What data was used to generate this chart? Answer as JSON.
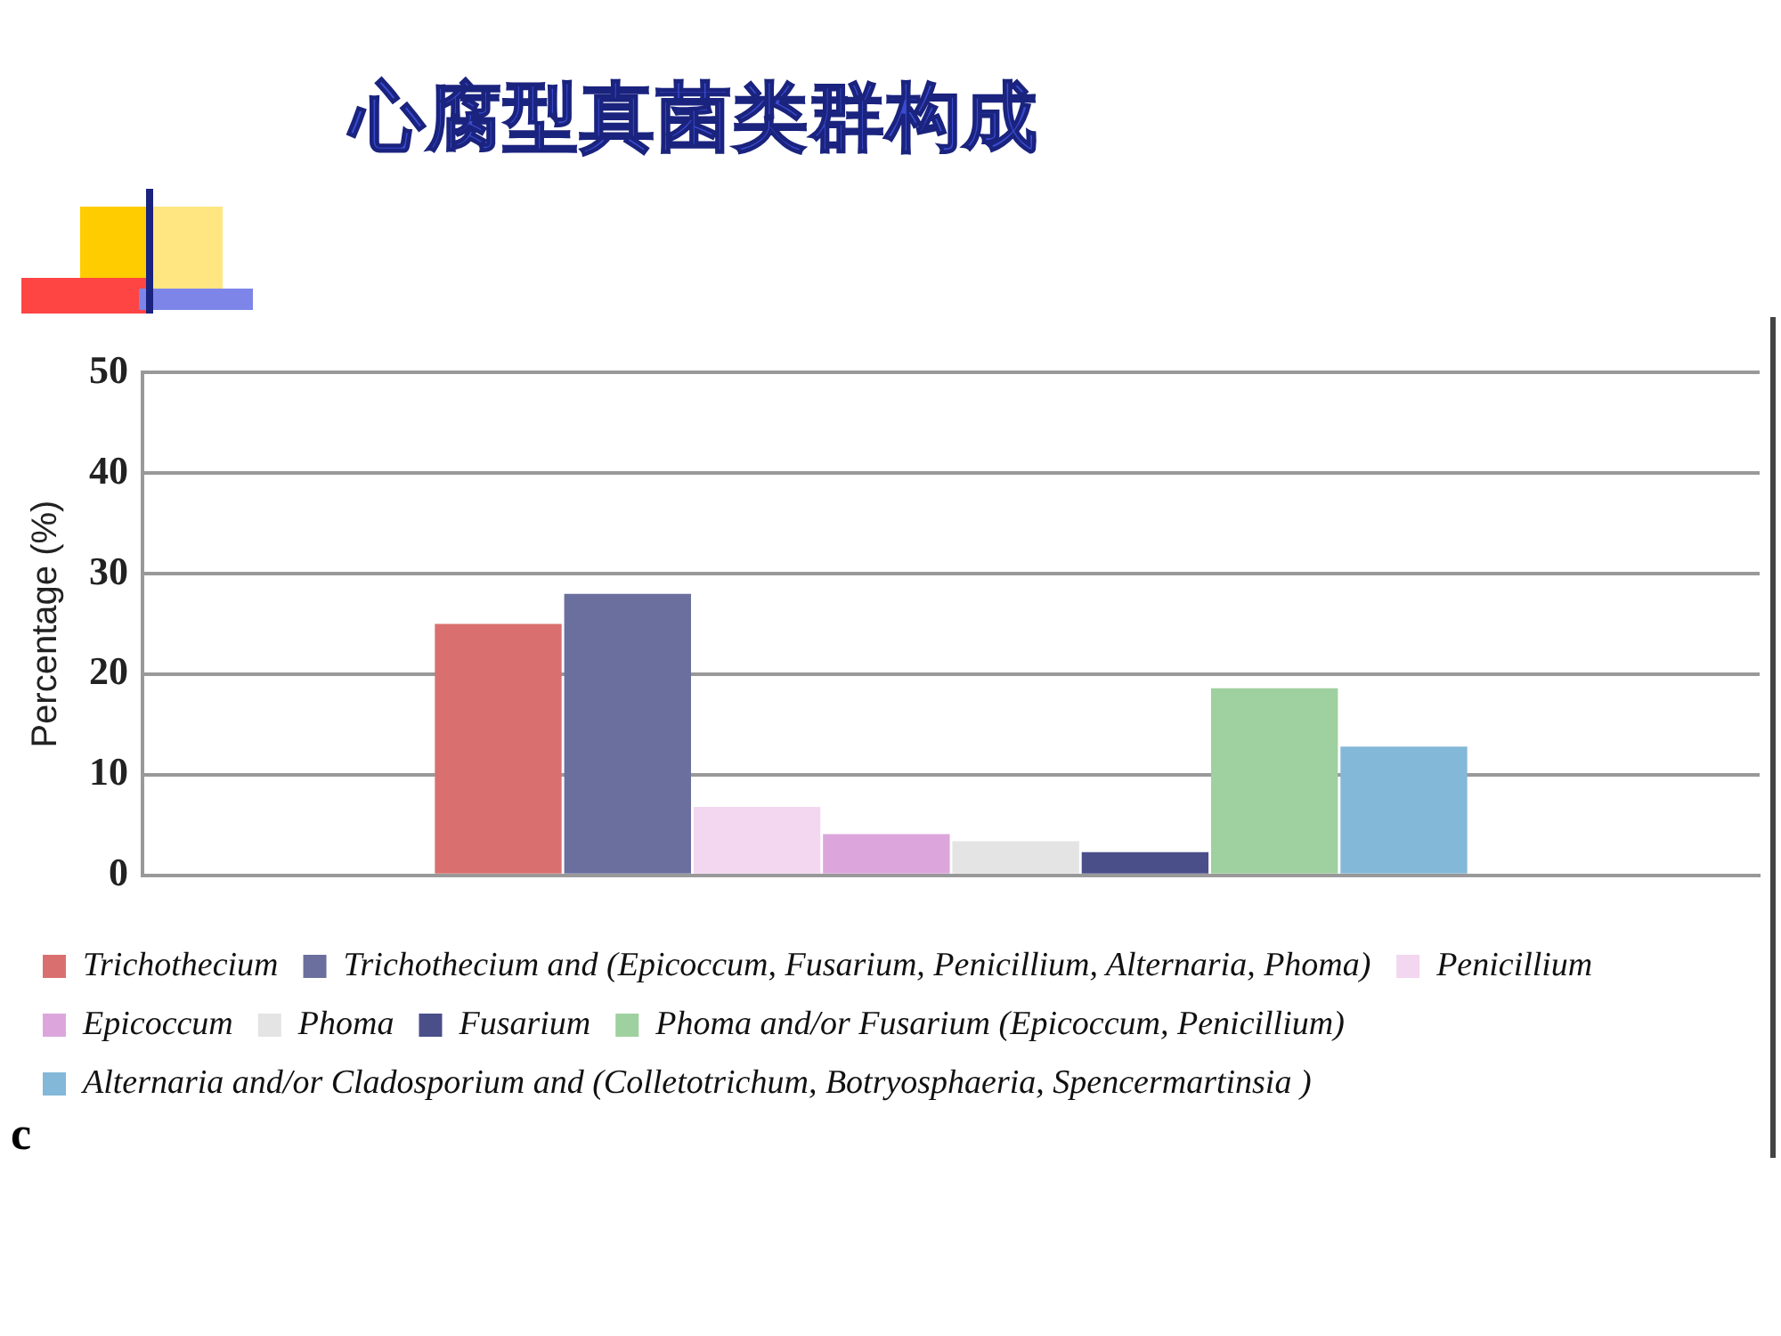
{
  "chart_data": {
    "type": "bar",
    "title": "心腐型真菌类群构成",
    "ylabel": "Percentage (%)",
    "categories": [
      null
    ],
    "series": [
      {
        "name": "Trichothecium",
        "color": "#d9706f",
        "values": [
          25
        ]
      },
      {
        "name": "Trichothecium and (Epicoccum, Fusarium, Penicillium, Alternaria, Phoma)",
        "color": "#6a6f9e",
        "values": [
          28
        ]
      },
      {
        "name": "Penicillium",
        "color": "#f3d6f0",
        "values": [
          6.8
        ]
      },
      {
        "name": "Epicoccum",
        "color": "#dca6dc",
        "values": [
          4.1
        ]
      },
      {
        "name": "Phoma",
        "color": "#e4e4e4",
        "values": [
          3.4
        ]
      },
      {
        "name": "Fusarium",
        "color": "#4a4f8a",
        "values": [
          2.3
        ]
      },
      {
        "name": "Phoma and/or Fusarium (Epicoccum, Penicillium)",
        "color": "#9fd09f",
        "values": [
          18.6
        ]
      },
      {
        "name": "Alternaria and/or Cladosporium and (Colletotrichum, Botryosphaeria, Spencermartinsia )",
        "color": "#84b8d8",
        "values": [
          12.8
        ]
      }
    ],
    "ylim": [
      0,
      50
    ],
    "yticks": [
      0,
      10,
      20,
      30,
      40,
      50
    ],
    "grid": "y",
    "legend": "bottom",
    "annotations": [
      "c"
    ]
  }
}
